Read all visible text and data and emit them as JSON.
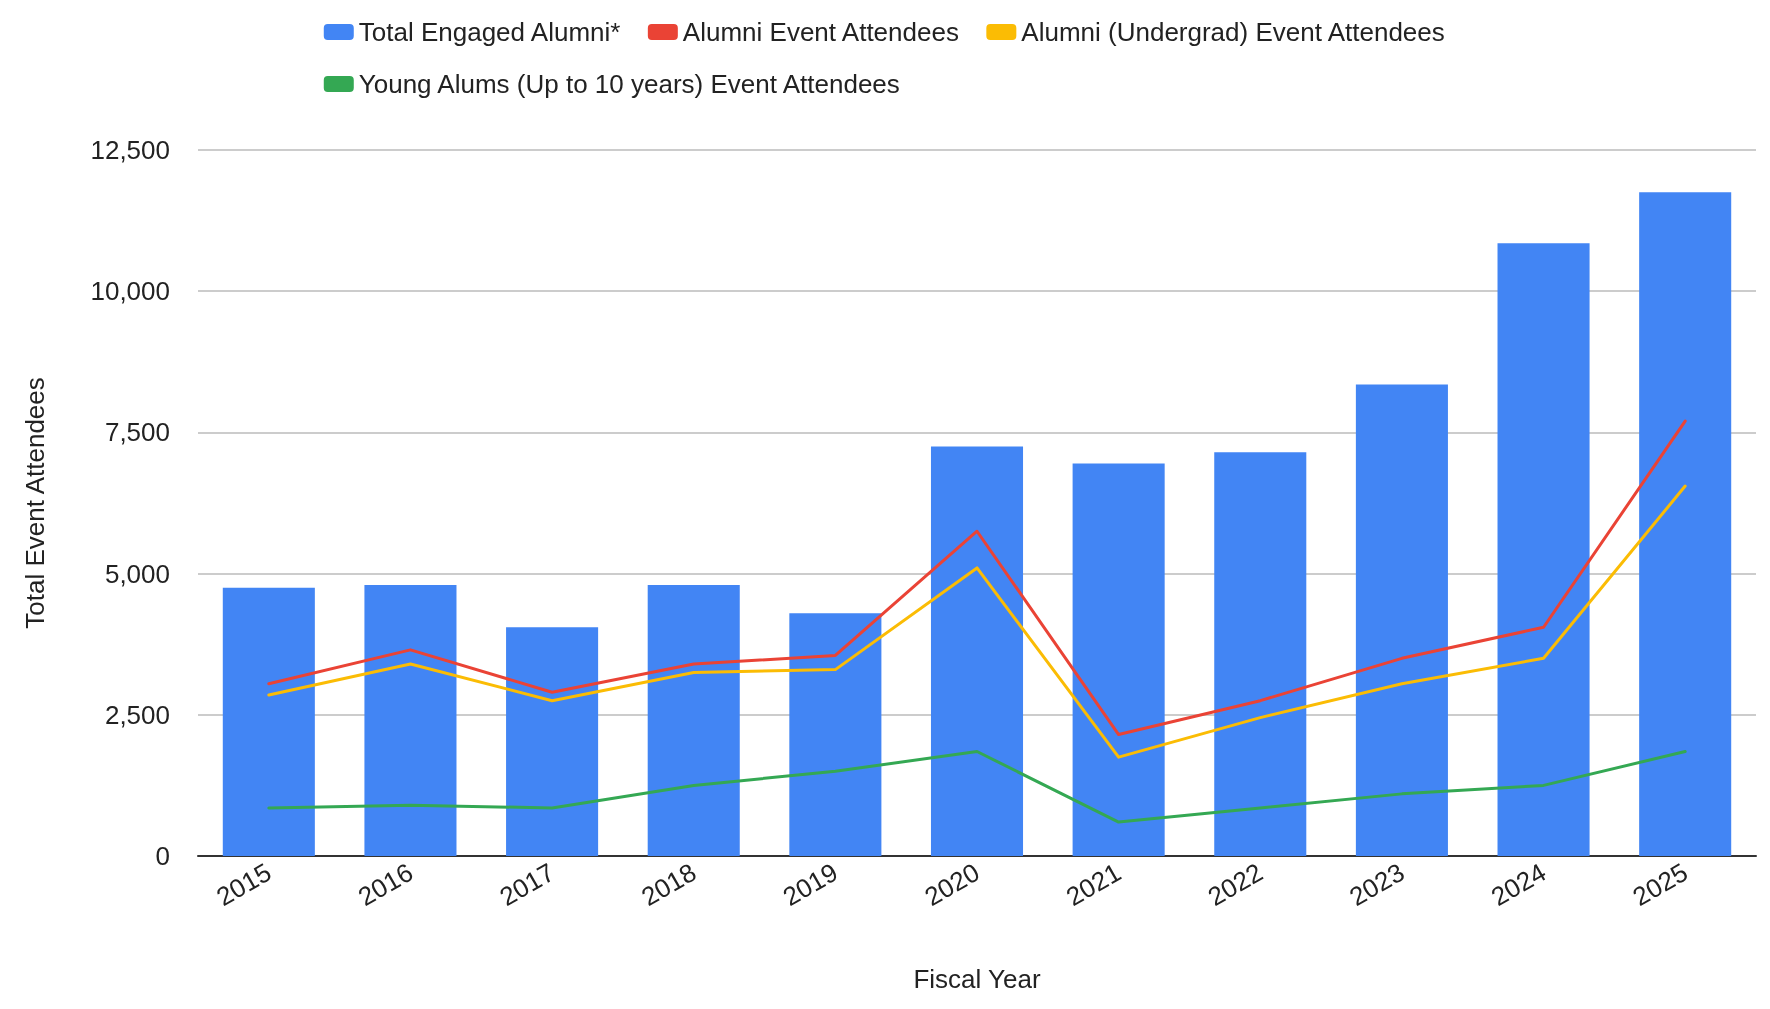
{
  "chart_data": {
    "type": "bar",
    "xlabel": "Fiscal Year",
    "ylabel": "Total Event Attendees",
    "categories": [
      "2015",
      "2016",
      "2017",
      "2018",
      "2019",
      "2020",
      "2021",
      "2022",
      "2023",
      "2024",
      "2025"
    ],
    "series": [
      {
        "name": "Total Engaged Alumni*",
        "color": "#4285f4",
        "values": [
          4750,
          4800,
          4050,
          4800,
          4300,
          7250,
          6950,
          7150,
          8350,
          10850,
          11750
        ]
      },
      {
        "name": "Alumni Event Attendees",
        "type": "line",
        "color": "#ea4335",
        "values": [
          3050,
          3650,
          2900,
          3400,
          3550,
          5750,
          2150,
          2750,
          3500,
          4050,
          7700
        ]
      },
      {
        "name": "Alumni (Undergrad) Event Attendees",
        "type": "line",
        "color": "#fbbc04",
        "values": [
          2850,
          3400,
          2750,
          3250,
          3300,
          5100,
          1750,
          2450,
          3050,
          3500,
          6550
        ]
      },
      {
        "name": "Young Alums (Up to 10 years) Event Attendees",
        "type": "line",
        "color": "#34a853",
        "values": [
          850,
          900,
          850,
          1250,
          1500,
          1850,
          600,
          850,
          1100,
          1250,
          1850
        ]
      }
    ],
    "ylim": [
      0,
      12500
    ],
    "yticks": [
      0,
      {
        "value": 2500,
        "label": "2,500"
      },
      {
        "value": 5000,
        "label": "5,000"
      },
      {
        "value": 7500,
        "label": "7,500"
      },
      {
        "value": 10000,
        "label": "10,000"
      },
      {
        "value": 12500,
        "label": "12,500"
      }
    ],
    "grid": "y",
    "legend": "top",
    "marker": "none",
    "line_style": "solid"
  }
}
